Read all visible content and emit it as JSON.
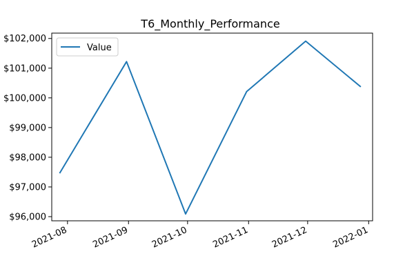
{
  "chart_data": {
    "type": "line",
    "title": "T6_Monthly_Performance",
    "xlabel": "",
    "ylabel": "",
    "x": [
      "2021-07-28",
      "2021-08-31",
      "2021-09-30",
      "2021-10-31",
      "2021-11-30",
      "2021-12-28"
    ],
    "series": [
      {
        "name": "Value",
        "values": [
          97460,
          101220,
          96090,
          100210,
          101910,
          100370
        ],
        "color": "#1f77b4"
      }
    ],
    "xlim": [
      "2021-07-24",
      "2022-01-03"
    ],
    "ylim": [
      95860,
      102180
    ],
    "xticks": [
      {
        "date": "2021-08-01",
        "label": "2021-08"
      },
      {
        "date": "2021-09-01",
        "label": "2021-09"
      },
      {
        "date": "2021-10-01",
        "label": "2021-10"
      },
      {
        "date": "2021-11-01",
        "label": "2021-11"
      },
      {
        "date": "2021-12-01",
        "label": "2021-12"
      },
      {
        "date": "2022-01-01",
        "label": "2022-01"
      }
    ],
    "yticks": [
      {
        "value": 96000,
        "label": "$96,000"
      },
      {
        "value": 97000,
        "label": "$97,000"
      },
      {
        "value": 98000,
        "label": "$98,000"
      },
      {
        "value": 99000,
        "label": "$99,000"
      },
      {
        "value": 100000,
        "label": "$100,000"
      },
      {
        "value": 101000,
        "label": "$101,000"
      },
      {
        "value": 102000,
        "label": "$102,000"
      }
    ],
    "grid": false,
    "legend": "top-left"
  }
}
